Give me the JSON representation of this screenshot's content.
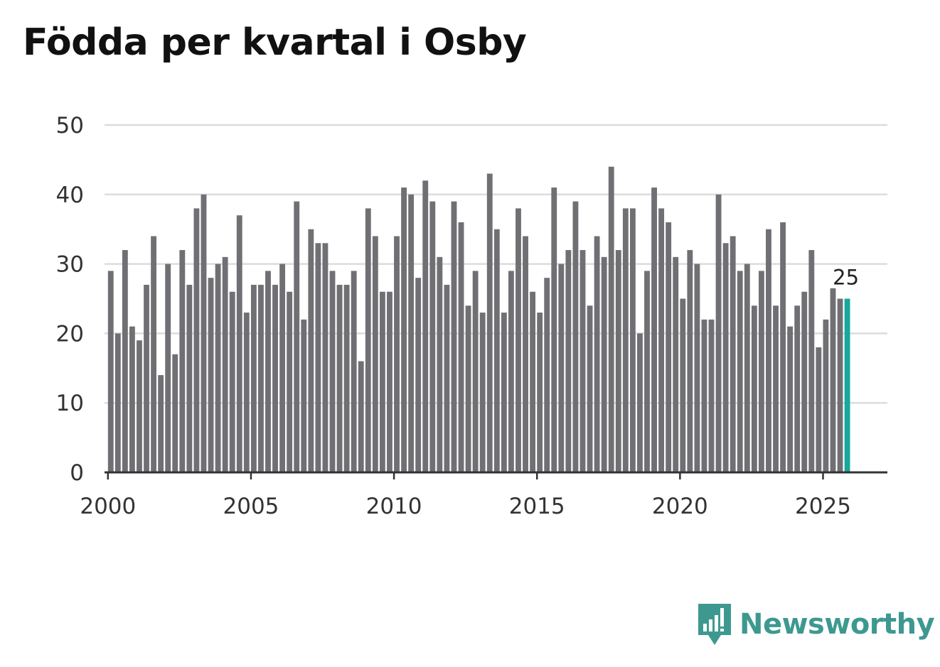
{
  "title": "Födda per kvartal i Osby",
  "brand": {
    "name": "Newsworthy",
    "icon": "newsworthy-logo-icon",
    "color": "#3d9990"
  },
  "colors": {
    "bar": "#707074",
    "highlight": "#17a89c",
    "grid": "#dcdcdc",
    "axis": "#333333"
  },
  "chart_data": {
    "type": "bar",
    "title": "Födda per kvartal i Osby",
    "xlabel": "",
    "ylabel": "",
    "ylim": [
      0,
      50
    ],
    "yticks": [
      0,
      10,
      20,
      30,
      40,
      50
    ],
    "xticks": [
      2000,
      2005,
      2010,
      2015,
      2020,
      2025
    ],
    "xlim": [
      1999.88,
      2027.25
    ],
    "start_year": 2000,
    "quarters_per_year": 4,
    "values": [
      29,
      20,
      32,
      21,
      19,
      27,
      34,
      14,
      30,
      17,
      32,
      27,
      38,
      40,
      28,
      30,
      31,
      26,
      37,
      23,
      27,
      27,
      29,
      27,
      30,
      26,
      39,
      22,
      35,
      33,
      33,
      29,
      27,
      27,
      29,
      16,
      38,
      34,
      26,
      26,
      34,
      41,
      40,
      28,
      42,
      39,
      31,
      27,
      39,
      36,
      24,
      29,
      23,
      43,
      35,
      23,
      29,
      38,
      34,
      26,
      23,
      28,
      41,
      30,
      32,
      39,
      32,
      24,
      34,
      31,
      44,
      32,
      38,
      38,
      20,
      29,
      41,
      38,
      36,
      31,
      25,
      32,
      30,
      22,
      22,
      40,
      33,
      34,
      29,
      30,
      24,
      29,
      35,
      24,
      36,
      21,
      24,
      26,
      32,
      18,
      22,
      26.5,
      25,
      25
    ],
    "highlight_index": 103,
    "annotation": {
      "index": 103,
      "text": "25"
    }
  }
}
